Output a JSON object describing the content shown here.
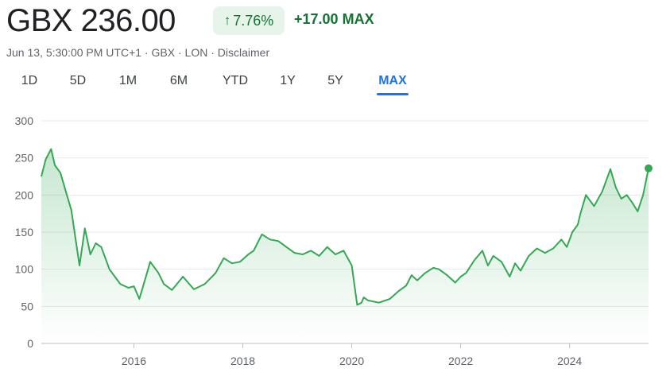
{
  "header": {
    "price": "GBX 236.00",
    "change_percent": "7.76%",
    "change_absolute": "+17.00",
    "change_period": "MAX",
    "meta": [
      "Jun 13, 5:30:00 PM UTC+1",
      "GBX",
      "LON",
      "Disclaimer"
    ],
    "meta_separator": " · "
  },
  "tabs": [
    {
      "label": "1D",
      "active": false
    },
    {
      "label": "5D",
      "active": false
    },
    {
      "label": "1M",
      "active": false
    },
    {
      "label": "6M",
      "active": false
    },
    {
      "label": "YTD",
      "active": false
    },
    {
      "label": "1Y",
      "active": false
    },
    {
      "label": "5Y",
      "active": false
    },
    {
      "label": "MAX",
      "active": true
    }
  ],
  "colors": {
    "line": "#34a853",
    "positive_text": "#137333",
    "positive_bg": "#e6f4ea",
    "accent": "#1a73e8",
    "grid": "#e8eaed"
  },
  "chart_data": {
    "type": "area",
    "ylim": [
      0,
      300
    ],
    "yticks": [
      0,
      50,
      100,
      150,
      200,
      250,
      300
    ],
    "xlim": [
      2014.3,
      2025.45
    ],
    "xticks": [
      {
        "value": 2016,
        "label": "2016"
      },
      {
        "value": 2018,
        "label": "2018"
      },
      {
        "value": 2020,
        "label": "2020"
      },
      {
        "value": 2022,
        "label": "2022"
      },
      {
        "value": 2024,
        "label": "2024"
      }
    ],
    "grid": true,
    "series": [
      {
        "x": [
          2014.3,
          2014.38,
          2014.48,
          2014.55,
          2014.65,
          2014.75,
          2014.85,
          2014.92,
          2015.0,
          2015.1,
          2015.2,
          2015.3,
          2015.4,
          2015.55,
          2015.65,
          2015.75,
          2015.9,
          2016.0,
          2016.1,
          2016.2,
          2016.3,
          2016.45,
          2016.55,
          2016.7,
          2016.9,
          2017.1,
          2017.3,
          2017.5,
          2017.65,
          2017.8,
          2017.95,
          2018.1,
          2018.2,
          2018.35,
          2018.5,
          2018.65,
          2018.8,
          2018.95,
          2019.1,
          2019.25,
          2019.4,
          2019.55,
          2019.7,
          2019.85,
          2020.0,
          2020.1,
          2020.18,
          2020.22,
          2020.3,
          2020.5,
          2020.7,
          2020.85,
          2021.0,
          2021.1,
          2021.2,
          2021.35,
          2021.5,
          2021.6,
          2021.75,
          2021.9,
          2022.0,
          2022.1,
          2022.25,
          2022.4,
          2022.5,
          2022.6,
          2022.75,
          2022.9,
          2023.0,
          2023.1,
          2023.25,
          2023.4,
          2023.55,
          2023.7,
          2023.85,
          2023.95,
          2024.05,
          2024.15,
          2024.2,
          2024.3,
          2024.45,
          2024.6,
          2024.75,
          2024.85,
          2024.95,
          2025.05,
          2025.15,
          2025.25,
          2025.35,
          2025.45
        ],
        "y": [
          225,
          248,
          262,
          240,
          230,
          205,
          180,
          145,
          105,
          155,
          120,
          135,
          130,
          100,
          90,
          80,
          75,
          77,
          60,
          85,
          110,
          95,
          80,
          72,
          90,
          73,
          80,
          95,
          115,
          108,
          110,
          120,
          125,
          147,
          140,
          138,
          130,
          122,
          120,
          125,
          118,
          130,
          120,
          125,
          105,
          52,
          55,
          62,
          58,
          55,
          60,
          70,
          78,
          92,
          85,
          95,
          102,
          100,
          92,
          82,
          90,
          95,
          112,
          125,
          105,
          118,
          110,
          90,
          108,
          98,
          118,
          128,
          122,
          128,
          140,
          130,
          150,
          160,
          175,
          200,
          185,
          205,
          235,
          210,
          195,
          200,
          190,
          178,
          200,
          236
        ]
      }
    ]
  }
}
